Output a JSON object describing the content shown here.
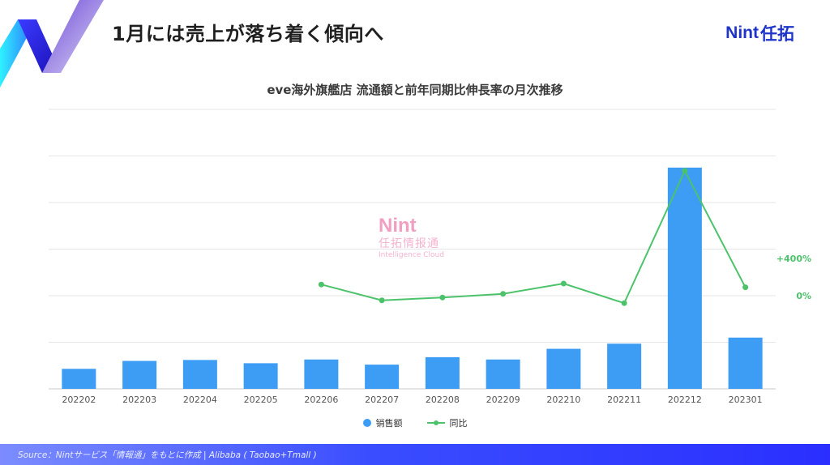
{
  "header": {
    "title": "1月には売上が落ち着く傾向へ",
    "brand_en": "Nint",
    "brand_jp": "任拓"
  },
  "chart_data": {
    "type": "bar",
    "title": "eve海外旗艦店 流通額と前年同期比伸長率の月次推移",
    "categories": [
      "202202",
      "202203",
      "202204",
      "202205",
      "202206",
      "202207",
      "202208",
      "202209",
      "202210",
      "202211",
      "202212",
      "202301"
    ],
    "series": [
      {
        "name": "销售额",
        "type": "bar",
        "axis": "left",
        "color": "#3d9df5",
        "values": [
          0.43,
          0.6,
          0.62,
          0.55,
          0.63,
          0.52,
          0.68,
          0.63,
          0.86,
          0.97,
          4.75,
          1.1
        ]
      },
      {
        "name": "同比",
        "type": "line",
        "axis": "right",
        "color": "#4cc36b",
        "values": [
          null,
          null,
          null,
          null,
          120,
          -50,
          -20,
          20,
          130,
          -80,
          1340,
          90
        ]
      }
    ],
    "left_axis": {
      "min": 0,
      "max": 6,
      "tick_labels_shown": false
    },
    "right_axis": {
      "min": -1000,
      "max": 2000,
      "labels": [
        {
          "value": 400,
          "text": "+400%"
        },
        {
          "value": 0,
          "text": "0%"
        }
      ]
    },
    "grid": true,
    "legend": "bottom-center"
  },
  "watermark": {
    "en": "Nint",
    "jp": "任拓情报通",
    "sub": "Intelligence Cloud"
  },
  "footer": {
    "source": "Source：Nintサービス「情報通」をもとに作成 | Alibaba ( Taobao+Tmall )"
  },
  "colors": {
    "bar": "#3d9df5",
    "line": "#4cc36b",
    "brand": "#1d33c9"
  }
}
